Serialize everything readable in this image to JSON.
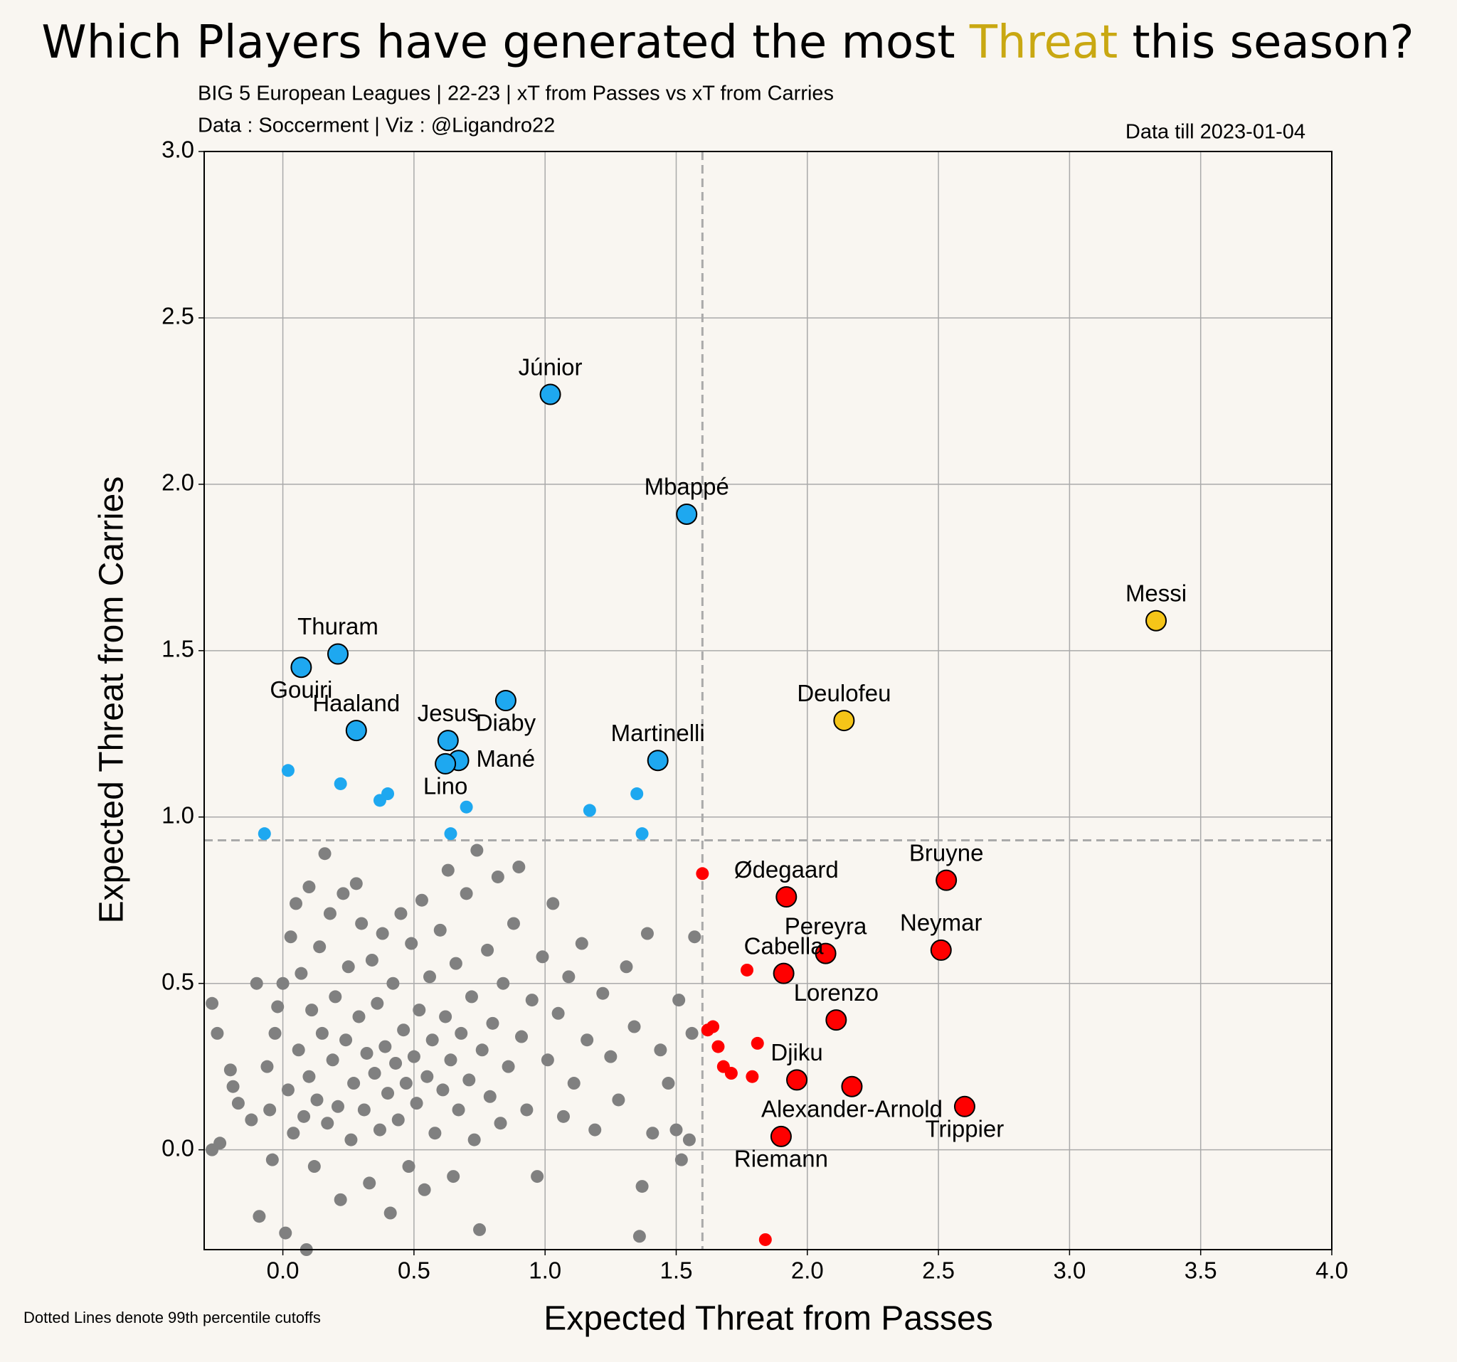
{
  "chart_data": {
    "type": "scatter",
    "title_parts": [
      "Which Players have generated the most ",
      "Threat",
      " this season?"
    ],
    "title_highlight_color": "#c9a812",
    "subtitle": "BIG 5 European Leagues | 22-23 | xT from Passes vs xT from Carries",
    "credits": "Data : Soccerment | Viz : @Ligandro22",
    "date_note": "Data till 2023-01-04",
    "x_label": "Expected Threat from Passes",
    "y_label": "Expected Threat from Carries",
    "footnote": "Dotted Lines denote 99th percentile cutoffs",
    "xlim": [
      -0.3,
      4.0
    ],
    "ylim": [
      -0.3,
      3.0
    ],
    "xticks": [
      {
        "value": 0,
        "label": "0.0"
      },
      {
        "value": 0.5,
        "label": "0.5"
      },
      {
        "value": 1,
        "label": "1.0"
      },
      {
        "value": 1.5,
        "label": "1.5"
      },
      {
        "value": 2,
        "label": "2.0"
      },
      {
        "value": 2.5,
        "label": "2.5"
      },
      {
        "value": 3,
        "label": "3.0"
      },
      {
        "value": 3.5,
        "label": "3.5"
      },
      {
        "value": 4,
        "label": "4.0"
      }
    ],
    "yticks": [
      {
        "value": 0,
        "label": "0.0"
      },
      {
        "value": 0.5,
        "label": "0.5"
      },
      {
        "value": 1,
        "label": "1.0"
      },
      {
        "value": 1.5,
        "label": "1.5"
      },
      {
        "value": 2,
        "label": "2.0"
      },
      {
        "value": 2.5,
        "label": "2.5"
      },
      {
        "value": 3,
        "label": "3.0"
      }
    ],
    "grid": true,
    "cutoffs": {
      "x": 1.6,
      "y": 0.93
    },
    "series": [
      {
        "color": "#808080",
        "size": "small",
        "outline": false,
        "x": [
          -0.27,
          -0.25,
          -0.27,
          -0.24,
          -0.2,
          -0.19,
          -0.17,
          -0.1,
          -0.12,
          -0.09,
          -0.06,
          -0.05,
          -0.04,
          -0.03,
          -0.02,
          0,
          0.01,
          0.02,
          0.03,
          0.04,
          0.05,
          0.06,
          0.07,
          0.08,
          0.09,
          0.1,
          0.1,
          0.11,
          0.12,
          0.13,
          0.14,
          0.15,
          0.16,
          0.17,
          0.18,
          0.19,
          0.2,
          0.21,
          0.22,
          0.23,
          0.24,
          0.25,
          0.26,
          0.27,
          0.28,
          0.29,
          0.3,
          0.31,
          0.32,
          0.33,
          0.34,
          0.35,
          0.36,
          0.37,
          0.38,
          0.39,
          0.4,
          0.41,
          0.42,
          0.43,
          0.44,
          0.45,
          0.46,
          0.47,
          0.48,
          0.49,
          0.5,
          0.51,
          0.52,
          0.53,
          0.54,
          0.55,
          0.56,
          0.57,
          0.58,
          0.6,
          0.61,
          0.62,
          0.63,
          0.64,
          0.65,
          0.66,
          0.67,
          0.68,
          0.7,
          0.71,
          0.72,
          0.73,
          0.74,
          0.75,
          0.76,
          0.78,
          0.79,
          0.8,
          0.82,
          0.83,
          0.84,
          0.86,
          0.88,
          0.9,
          0.91,
          0.93,
          0.95,
          0.97,
          0.99,
          1.01,
          1.03,
          1.05,
          1.07,
          1.09,
          1.11,
          1.14,
          1.16,
          1.19,
          1.22,
          1.25,
          1.28,
          1.31,
          1.34,
          1.36,
          1.37,
          1.39,
          1.41,
          1.44,
          1.47,
          1.5,
          1.51,
          1.52,
          1.55,
          1.56,
          1.57
        ],
        "y": [
          0.44,
          0.35,
          0,
          0.02,
          0.24,
          0.19,
          0.14,
          0.5,
          0.09,
          -0.2,
          0.25,
          0.12,
          -0.03,
          0.35,
          0.43,
          0.5,
          -0.25,
          0.18,
          0.64,
          0.05,
          0.74,
          0.3,
          0.53,
          0.1,
          -0.3,
          0.79,
          0.22,
          0.42,
          -0.05,
          0.15,
          0.61,
          0.35,
          0.89,
          0.08,
          0.71,
          0.27,
          0.46,
          0.13,
          -0.15,
          0.77,
          0.33,
          0.55,
          0.03,
          0.2,
          0.8,
          0.4,
          0.68,
          0.12,
          0.29,
          -0.1,
          0.57,
          0.23,
          0.44,
          0.06,
          0.65,
          0.31,
          0.17,
          -0.19,
          0.5,
          0.26,
          0.09,
          0.71,
          0.36,
          0.2,
          -0.05,
          0.62,
          0.28,
          0.14,
          0.42,
          0.75,
          -0.12,
          0.22,
          0.52,
          0.33,
          0.05,
          0.66,
          0.18,
          0.4,
          0.84,
          0.27,
          -0.08,
          0.56,
          0.12,
          0.35,
          0.77,
          0.21,
          0.46,
          0.03,
          0.9,
          -0.24,
          0.3,
          0.6,
          0.16,
          0.38,
          0.82,
          0.08,
          0.5,
          0.25,
          0.68,
          0.85,
          0.34,
          0.12,
          0.45,
          -0.08,
          0.58,
          0.27,
          0.74,
          0.41,
          0.1,
          0.52,
          0.2,
          0.62,
          0.33,
          0.06,
          0.47,
          0.28,
          0.15,
          0.55,
          0.37,
          -0.26,
          -0.11,
          0.65,
          0.05,
          0.3,
          0.2,
          0.06,
          0.45,
          -0.03,
          0.03,
          0.35,
          0.64
        ]
      },
      {
        "color": "#1ea8f0",
        "size": "small",
        "outline": false,
        "x": [
          0.02,
          0.22,
          0.37,
          0.4,
          -0.07,
          0.64,
          0.7,
          1.17,
          1.35,
          1.37
        ],
        "y": [
          1.14,
          1.1,
          1.05,
          1.07,
          0.95,
          0.95,
          1.03,
          1.02,
          1.07,
          0.95
        ]
      },
      {
        "color": "#ff0000",
        "size": "small",
        "outline": false,
        "x": [
          1.6,
          1.77,
          1.62,
          1.64,
          1.66,
          1.68,
          1.71,
          1.79,
          1.81,
          1.84
        ],
        "y": [
          0.83,
          0.54,
          0.36,
          0.37,
          0.31,
          0.25,
          0.23,
          0.22,
          0.32,
          -0.27
        ]
      },
      {
        "color": "#1ea8f0",
        "size": "large",
        "outline": true,
        "x": [
          1.02,
          1.54,
          0.21,
          0.07,
          0.28,
          0.63,
          0.85,
          0.67,
          0.62,
          1.43
        ],
        "y": [
          2.27,
          1.91,
          1.49,
          1.45,
          1.26,
          1.23,
          1.35,
          1.17,
          1.16,
          1.17
        ],
        "labels": [
          "Júnior",
          "Mbappé",
          "Thuram",
          "Gouiri",
          "Haaland",
          "Jesus",
          "Diaby",
          "Mané",
          "Lino",
          "Martinelli"
        ]
      },
      {
        "color": "#f5c518",
        "size": "large",
        "outline": true,
        "x": [
          3.33,
          2.14
        ],
        "y": [
          1.59,
          1.29
        ],
        "labels": [
          "Messi",
          "Deulofeu"
        ]
      },
      {
        "color": "#ff0000",
        "size": "large",
        "outline": true,
        "x": [
          1.92,
          2.53,
          2.51,
          2.07,
          1.91,
          2.11,
          1.96,
          2.17,
          2.6,
          1.9
        ],
        "y": [
          0.76,
          0.81,
          0.6,
          0.59,
          0.53,
          0.39,
          0.21,
          0.19,
          0.13,
          0.04
        ],
        "labels": [
          "Ødegaard",
          "Bruyne",
          "Neymar",
          "Pereyra",
          "Cabella",
          "Lorenzo",
          "Djiku",
          "Alexander-Arnold",
          "Trippier",
          "Riemann"
        ]
      }
    ]
  }
}
